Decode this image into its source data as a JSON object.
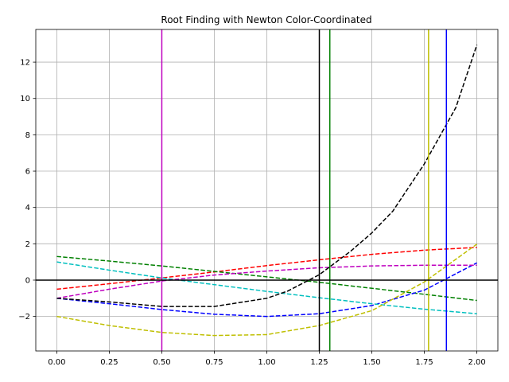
{
  "chart_data": {
    "type": "line",
    "title": "Root Finding with Newton Color-Coordinated",
    "xlabel": "",
    "ylabel": "",
    "xlim": [
      -0.1,
      2.1
    ],
    "ylim": [
      -3.9,
      13.8
    ],
    "x_ticks": [
      0.0,
      0.25,
      0.5,
      0.75,
      1.0,
      1.25,
      1.5,
      1.75,
      2.0
    ],
    "x_tick_labels": [
      "0.00",
      "0.25",
      "0.50",
      "0.75",
      "1.00",
      "1.25",
      "1.50",
      "1.75",
      "2.00"
    ],
    "y_ticks": [
      -2,
      0,
      2,
      4,
      6,
      8,
      10,
      12
    ],
    "y_tick_labels": [
      "−2",
      "0",
      "2",
      "4",
      "6",
      "8",
      "10",
      "12"
    ],
    "grid": true,
    "legend": "none",
    "x_axis_line": {
      "y": 0,
      "color": "#000000"
    },
    "series": [
      {
        "color": "#ff0000",
        "style": "dashed",
        "x": [
          0,
          0.25,
          0.5,
          0.75,
          1.0,
          1.25,
          1.5,
          1.75,
          2.0
        ],
        "y": [
          -0.5,
          -0.2,
          0.12,
          0.45,
          0.8,
          1.12,
          1.42,
          1.65,
          1.8
        ]
      },
      {
        "color": "#008000",
        "style": "dashed",
        "x": [
          0,
          0.25,
          0.5,
          0.75,
          1.0,
          1.25,
          1.5,
          1.75,
          2.0
        ],
        "y": [
          1.3,
          1.05,
          0.78,
          0.48,
          0.18,
          -0.12,
          -0.45,
          -0.78,
          -1.12
        ]
      },
      {
        "color": "#0000ff",
        "style": "dashed",
        "x": [
          0,
          0.25,
          0.5,
          0.75,
          1.0,
          1.25,
          1.5,
          1.75,
          2.0
        ],
        "y": [
          -1.0,
          -1.3,
          -1.62,
          -1.88,
          -2.0,
          -1.85,
          -1.4,
          -0.55,
          0.95
        ]
      },
      {
        "color": "#00bfbf",
        "style": "dashed",
        "x": [
          0,
          0.25,
          0.5,
          0.75,
          1.0,
          1.25,
          1.5,
          1.75,
          2.0
        ],
        "y": [
          1.0,
          0.55,
          0.12,
          -0.25,
          -0.62,
          -0.97,
          -1.3,
          -1.6,
          -1.85
        ]
      },
      {
        "color": "#bf00bf",
        "style": "dashed",
        "x": [
          0,
          0.25,
          0.5,
          0.75,
          1.0,
          1.25,
          1.5,
          1.75,
          2.0
        ],
        "y": [
          -1.0,
          -0.5,
          -0.05,
          0.28,
          0.5,
          0.68,
          0.78,
          0.82,
          0.82
        ]
      },
      {
        "color": "#bfbf00",
        "style": "dashed",
        "x": [
          0,
          0.25,
          0.5,
          0.75,
          1.0,
          1.25,
          1.5,
          1.75,
          2.0
        ],
        "y": [
          -2.0,
          -2.5,
          -2.88,
          -3.05,
          -3.0,
          -2.5,
          -1.68,
          -0.1,
          1.98
        ]
      },
      {
        "color": "#000000",
        "style": "dashed",
        "x": [
          0,
          0.25,
          0.5,
          0.75,
          1.0,
          1.1,
          1.25,
          1.4,
          1.5,
          1.6,
          1.75,
          1.9,
          2.0
        ],
        "y": [
          -1.0,
          -1.2,
          -1.45,
          -1.45,
          -1.0,
          -0.6,
          0.3,
          1.6,
          2.6,
          3.8,
          6.4,
          9.5,
          12.95
        ]
      }
    ],
    "vlines": [
      {
        "x": 0.5,
        "color": "#bf00bf"
      },
      {
        "x": 1.25,
        "color": "#000000"
      },
      {
        "x": 1.3,
        "color": "#008000"
      },
      {
        "x": 1.77,
        "color": "#bfbf00"
      },
      {
        "x": 1.855,
        "color": "#0000ff"
      }
    ]
  }
}
